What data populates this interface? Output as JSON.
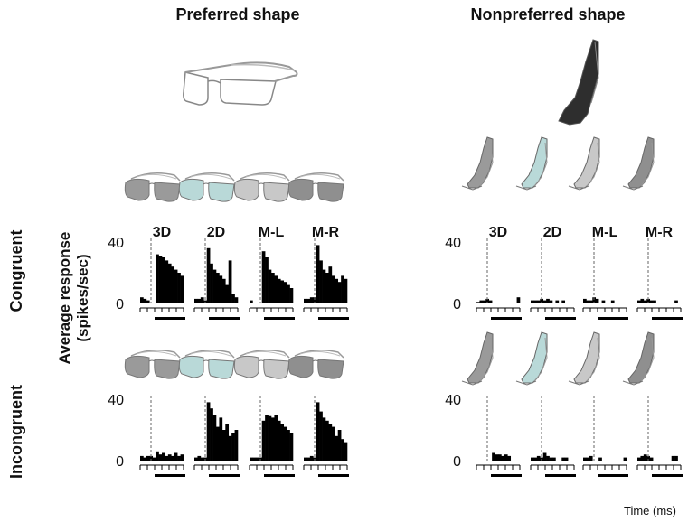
{
  "headers": {
    "preferred": "Preferred shape",
    "nonpreferred": "Nonpreferred shape"
  },
  "row_labels": {
    "congruent": "Congruent",
    "incongruent": "Incongruent"
  },
  "y_axis_label_line1": "Average response",
  "y_axis_label_line2": "(spikes/sec)",
  "x_axis_label": "Time (ms)",
  "conditions": [
    "3D",
    "2D",
    "M-L",
    "M-R"
  ],
  "icons": {
    "preferred": "eyeglasses-icon",
    "nonpreferred": "tilted-shape-icon",
    "colors": [
      "#9a9a9a",
      "#b9d9d8",
      "#c8c8c8",
      "#8f8f8f"
    ]
  },
  "chart_data": [
    {
      "type": "bar",
      "title": "Preferred shape",
      "row": "Congruent",
      "ylim": [
        0,
        40
      ],
      "yticks": [
        0,
        40
      ],
      "series": [
        {
          "name": "3D",
          "values": [
            4,
            3,
            2,
            0,
            0,
            32,
            31,
            30,
            28,
            26,
            24,
            22,
            20,
            18
          ]
        },
        {
          "name": "2D",
          "values": [
            3,
            3,
            4,
            2,
            36,
            26,
            22,
            20,
            18,
            16,
            12,
            28,
            6,
            4
          ]
        },
        {
          "name": "M-L",
          "values": [
            2,
            0,
            0,
            0,
            34,
            30,
            22,
            20,
            18,
            16,
            15,
            14,
            12,
            10
          ]
        },
        {
          "name": "M-R",
          "values": [
            3,
            3,
            4,
            4,
            38,
            28,
            22,
            20,
            24,
            18,
            16,
            14,
            18,
            16
          ]
        }
      ]
    },
    {
      "type": "bar",
      "title": "Preferred shape",
      "row": "Incongruent",
      "ylim": [
        0,
        40
      ],
      "yticks": [
        0,
        40
      ],
      "series": [
        {
          "name": "3D",
          "values": [
            3,
            2,
            3,
            3,
            2,
            6,
            4,
            5,
            3,
            4,
            3,
            5,
            3,
            4
          ]
        },
        {
          "name": "2D",
          "values": [
            2,
            3,
            2,
            2,
            38,
            34,
            30,
            22,
            28,
            20,
            24,
            16,
            18,
            20
          ]
        },
        {
          "name": "M-L",
          "values": [
            2,
            2,
            2,
            2,
            26,
            30,
            29,
            28,
            30,
            26,
            24,
            22,
            20,
            18
          ]
        },
        {
          "name": "M-R",
          "values": [
            2,
            2,
            3,
            2,
            38,
            32,
            28,
            26,
            24,
            22,
            16,
            20,
            14,
            12
          ]
        }
      ]
    },
    {
      "type": "bar",
      "title": "Nonpreferred shape",
      "row": "Congruent",
      "ylim": [
        0,
        40
      ],
      "yticks": [
        0,
        40
      ],
      "series": [
        {
          "name": "3D",
          "values": [
            1,
            2,
            2,
            3,
            2,
            0,
            0,
            0,
            0,
            0,
            0,
            0,
            0,
            4
          ]
        },
        {
          "name": "2D",
          "values": [
            2,
            2,
            2,
            3,
            2,
            3,
            2,
            0,
            2,
            0,
            2,
            0,
            0,
            0
          ]
        },
        {
          "name": "M-L",
          "values": [
            3,
            2,
            2,
            4,
            3,
            0,
            2,
            0,
            0,
            2,
            0,
            0,
            0,
            0
          ]
        },
        {
          "name": "M-R",
          "values": [
            2,
            3,
            2,
            3,
            2,
            2,
            0,
            0,
            0,
            0,
            0,
            0,
            2,
            0
          ]
        }
      ]
    },
    {
      "type": "bar",
      "title": "Nonpreferred shape",
      "row": "Incongruent",
      "ylim": [
        0,
        40
      ],
      "yticks": [
        0,
        40
      ],
      "series": [
        {
          "name": "3D",
          "values": [
            0,
            0,
            0,
            0,
            0,
            5,
            4,
            4,
            3,
            4,
            3,
            0,
            0,
            0
          ]
        },
        {
          "name": "2D",
          "values": [
            2,
            2,
            3,
            2,
            5,
            3,
            2,
            2,
            0,
            0,
            2,
            2,
            0,
            0
          ]
        },
        {
          "name": "M-L",
          "values": [
            2,
            2,
            3,
            0,
            0,
            2,
            0,
            0,
            0,
            0,
            0,
            0,
            0,
            2
          ]
        },
        {
          "name": "M-R",
          "values": [
            2,
            3,
            4,
            3,
            2,
            0,
            0,
            0,
            0,
            0,
            0,
            3,
            3,
            0
          ]
        }
      ]
    }
  ]
}
